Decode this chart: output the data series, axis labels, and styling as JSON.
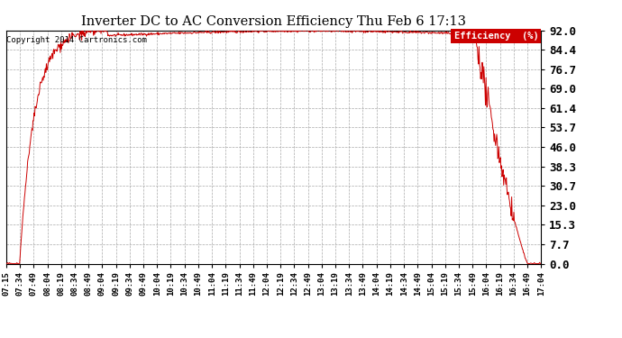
{
  "title": "Inverter DC to AC Conversion Efficiency Thu Feb 6 17:13",
  "copyright": "Copyright 2014 Cartronics.com",
  "legend_label": "Efficiency  (%)",
  "legend_bg": "#cc0000",
  "legend_fg": "#ffffff",
  "line_color": "#cc0000",
  "bg_color": "#ffffff",
  "plot_bg_color": "#ffffff",
  "yticks": [
    0.0,
    7.7,
    15.3,
    23.0,
    30.7,
    38.3,
    46.0,
    53.7,
    61.4,
    69.0,
    76.7,
    84.4,
    92.0
  ],
  "xtick_labels": [
    "07:15",
    "07:34",
    "07:49",
    "08:04",
    "08:19",
    "08:34",
    "08:49",
    "09:04",
    "09:19",
    "09:34",
    "09:49",
    "10:04",
    "10:19",
    "10:34",
    "10:49",
    "11:04",
    "11:19",
    "11:34",
    "11:49",
    "12:04",
    "12:19",
    "12:34",
    "12:49",
    "13:04",
    "13:19",
    "13:34",
    "13:49",
    "14:04",
    "14:19",
    "14:34",
    "14:49",
    "15:04",
    "15:19",
    "15:34",
    "15:49",
    "16:04",
    "16:19",
    "16:34",
    "16:49",
    "17:04"
  ],
  "ymin": 0.0,
  "ymax": 92.0,
  "grid_color": "#aaaaaa",
  "grid_style": "--"
}
